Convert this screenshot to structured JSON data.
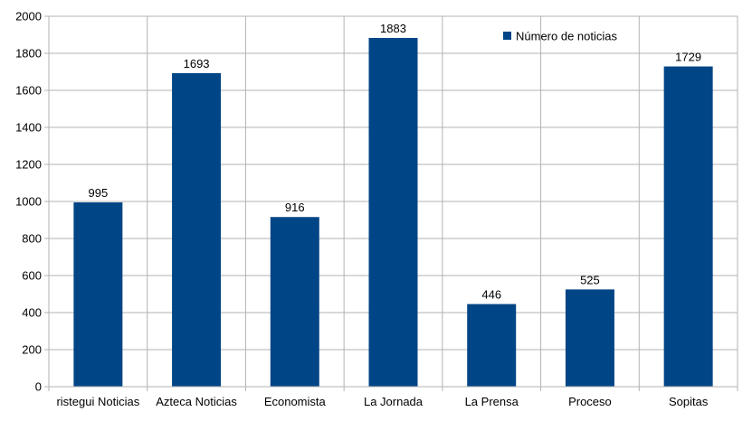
{
  "chart_data": {
    "type": "bar",
    "categories": [
      "ristegui Noticias",
      "Azteca Noticias",
      "Economista",
      "La Jornada",
      "La Prensa",
      "Proceso",
      "Sopitas"
    ],
    "series": [
      {
        "name": "Número de noticias",
        "values": [
          995,
          1693,
          916,
          1883,
          446,
          525,
          1729
        ]
      }
    ],
    "ylim": [
      0,
      2000
    ],
    "yticks": [
      0,
      200,
      400,
      600,
      800,
      1000,
      1200,
      1400,
      1600,
      1800,
      2000
    ],
    "grid": true,
    "legend": "top-right",
    "colors": {
      "bar": "#004586",
      "grid": "#b3b3b3",
      "axis": "#b3b3b3"
    }
  }
}
